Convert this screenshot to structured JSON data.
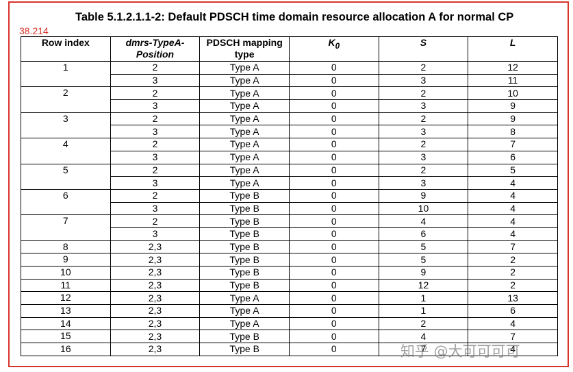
{
  "title": "Table 5.1.2.1.1-2: Default PDSCH time domain resource allocation A for normal CP",
  "annotation": "38.214",
  "watermark": "知乎 @大可可可可",
  "table": {
    "header": [
      "Row index",
      "dmrs-TypeA-Position",
      "PDSCH mapping type",
      {
        "text": "K",
        "sub": "0"
      },
      "S",
      "L"
    ],
    "rows": [
      {
        "index": 1,
        "entries": [
          [
            2,
            "Type A",
            0,
            2,
            12
          ],
          [
            3,
            "Type A",
            0,
            3,
            11
          ]
        ]
      },
      {
        "index": 2,
        "entries": [
          [
            2,
            "Type A",
            0,
            2,
            10
          ],
          [
            3,
            "Type A",
            0,
            3,
            9
          ]
        ]
      },
      {
        "index": 3,
        "entries": [
          [
            2,
            "Type A",
            0,
            2,
            9
          ],
          [
            3,
            "Type A",
            0,
            3,
            8
          ]
        ]
      },
      {
        "index": 4,
        "entries": [
          [
            2,
            "Type A",
            0,
            2,
            7
          ],
          [
            3,
            "Type A",
            0,
            3,
            6
          ]
        ]
      },
      {
        "index": 5,
        "entries": [
          [
            2,
            "Type A",
            0,
            2,
            5
          ],
          [
            3,
            "Type A",
            0,
            3,
            4
          ]
        ]
      },
      {
        "index": 6,
        "entries": [
          [
            2,
            "Type B",
            0,
            9,
            4
          ],
          [
            3,
            "Type B",
            0,
            10,
            4
          ]
        ]
      },
      {
        "index": 7,
        "entries": [
          [
            2,
            "Type B",
            0,
            4,
            4
          ],
          [
            3,
            "Type B",
            0,
            6,
            4
          ]
        ]
      },
      {
        "index": 8,
        "entries": [
          [
            "2,3",
            "Type B",
            0,
            5,
            7
          ]
        ]
      },
      {
        "index": 9,
        "entries": [
          [
            "2,3",
            "Type B",
            0,
            5,
            2
          ]
        ]
      },
      {
        "index": 10,
        "entries": [
          [
            "2,3",
            "Type B",
            0,
            9,
            2
          ]
        ]
      },
      {
        "index": 11,
        "entries": [
          [
            "2,3",
            "Type B",
            0,
            12,
            2
          ]
        ]
      },
      {
        "index": 12,
        "entries": [
          [
            "2,3",
            "Type A",
            0,
            1,
            13
          ]
        ]
      },
      {
        "index": 13,
        "entries": [
          [
            "2,3",
            "Type A",
            0,
            1,
            6
          ]
        ]
      },
      {
        "index": 14,
        "entries": [
          [
            "2,3",
            "Type A",
            0,
            2,
            4
          ]
        ]
      },
      {
        "index": 15,
        "entries": [
          [
            "2,3",
            "Type B",
            0,
            4,
            7
          ]
        ]
      },
      {
        "index": 16,
        "entries": [
          [
            "2,3",
            "Type B",
            0,
            7,
            4
          ]
        ]
      }
    ]
  }
}
